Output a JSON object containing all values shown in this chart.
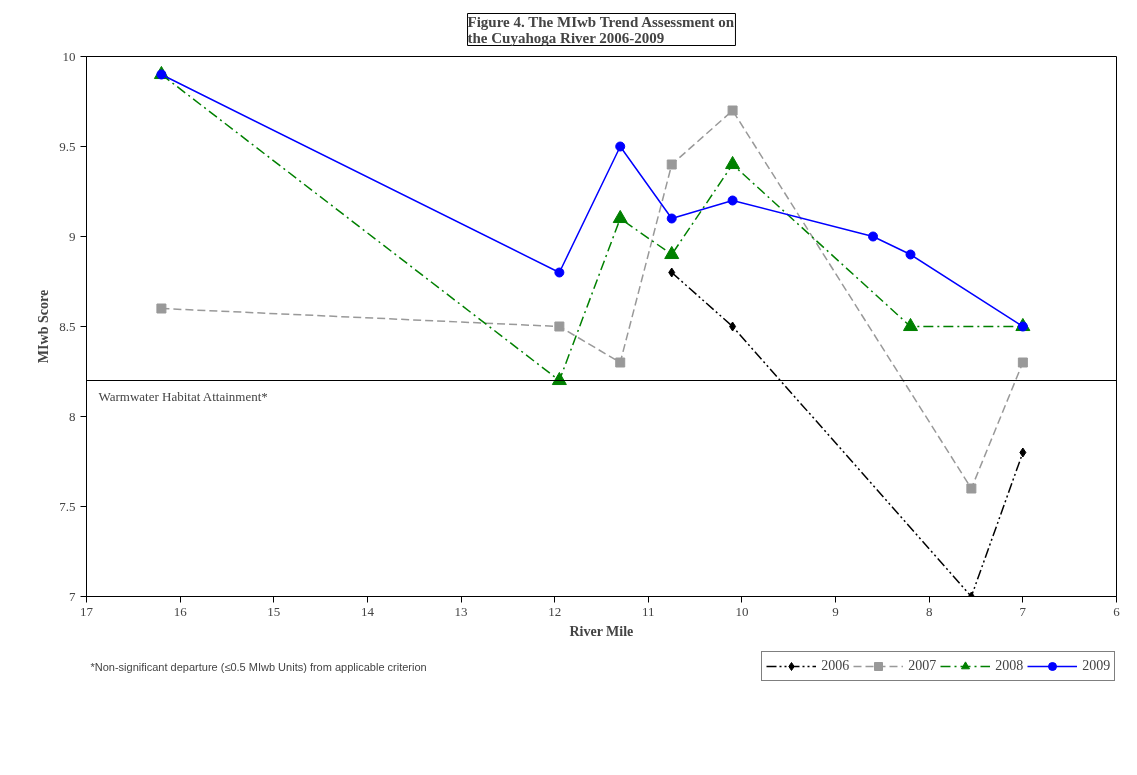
{
  "chart_data": {
    "type": "line",
    "title": "Figure 4. The MIwb Trend Assessment on\nthe Cuyahoga River 2006-2009",
    "xlabel": "River Mile",
    "ylabel": "MIwb Score",
    "xlim": [
      17,
      6
    ],
    "xticks": [
      17,
      16,
      15,
      14,
      13,
      12,
      11,
      10,
      9,
      8,
      7,
      6
    ],
    "ylim": [
      7,
      10
    ],
    "yticks": [
      7,
      7.5,
      8,
      8.5,
      9,
      9.5,
      10
    ],
    "grid": false,
    "legend": "bottom right",
    "series": [
      {
        "name": "2006",
        "color": "#000000",
        "marker": "diamond",
        "line_style": "dashdotdot",
        "x": [
          10.75,
          10.1,
          7.55,
          7.0
        ],
        "values": [
          8.8,
          8.5,
          7.0,
          7.8
        ]
      },
      {
        "name": "2007",
        "color": "#999999",
        "marker": "square",
        "line_style": "dashed",
        "x": [
          16.2,
          11.95,
          11.3,
          10.75,
          10.1,
          7.55,
          7.0
        ],
        "values": [
          8.6,
          8.5,
          8.3,
          9.4,
          9.7,
          7.6,
          8.3
        ]
      },
      {
        "name": "2008",
        "color": "#008000",
        "marker": "triangle",
        "line_style": "dashdot",
        "x": [
          16.2,
          11.95,
          11.3,
          10.75,
          10.1,
          8.2,
          7.0
        ],
        "values": [
          9.9,
          8.2,
          9.1,
          8.9,
          9.4,
          8.5,
          8.5
        ]
      },
      {
        "name": "2009",
        "color": "#0000ff",
        "marker": "circle",
        "line_style": "solid",
        "x": [
          16.2,
          11.95,
          11.3,
          10.75,
          10.1,
          8.6,
          8.2,
          7.0
        ],
        "values": [
          9.9,
          8.8,
          9.5,
          9.1,
          9.2,
          9.0,
          8.9,
          8.5
        ]
      }
    ],
    "ref_lines": [
      {
        "axis": "y",
        "value": 8.2,
        "label": "Warmwater Habitat Attainment*",
        "color": "#000000",
        "line_style": "solid"
      }
    ],
    "annotations": [
      "*Non-significant departure (≤0.5 MIwb Units) from applicable criterion"
    ]
  }
}
